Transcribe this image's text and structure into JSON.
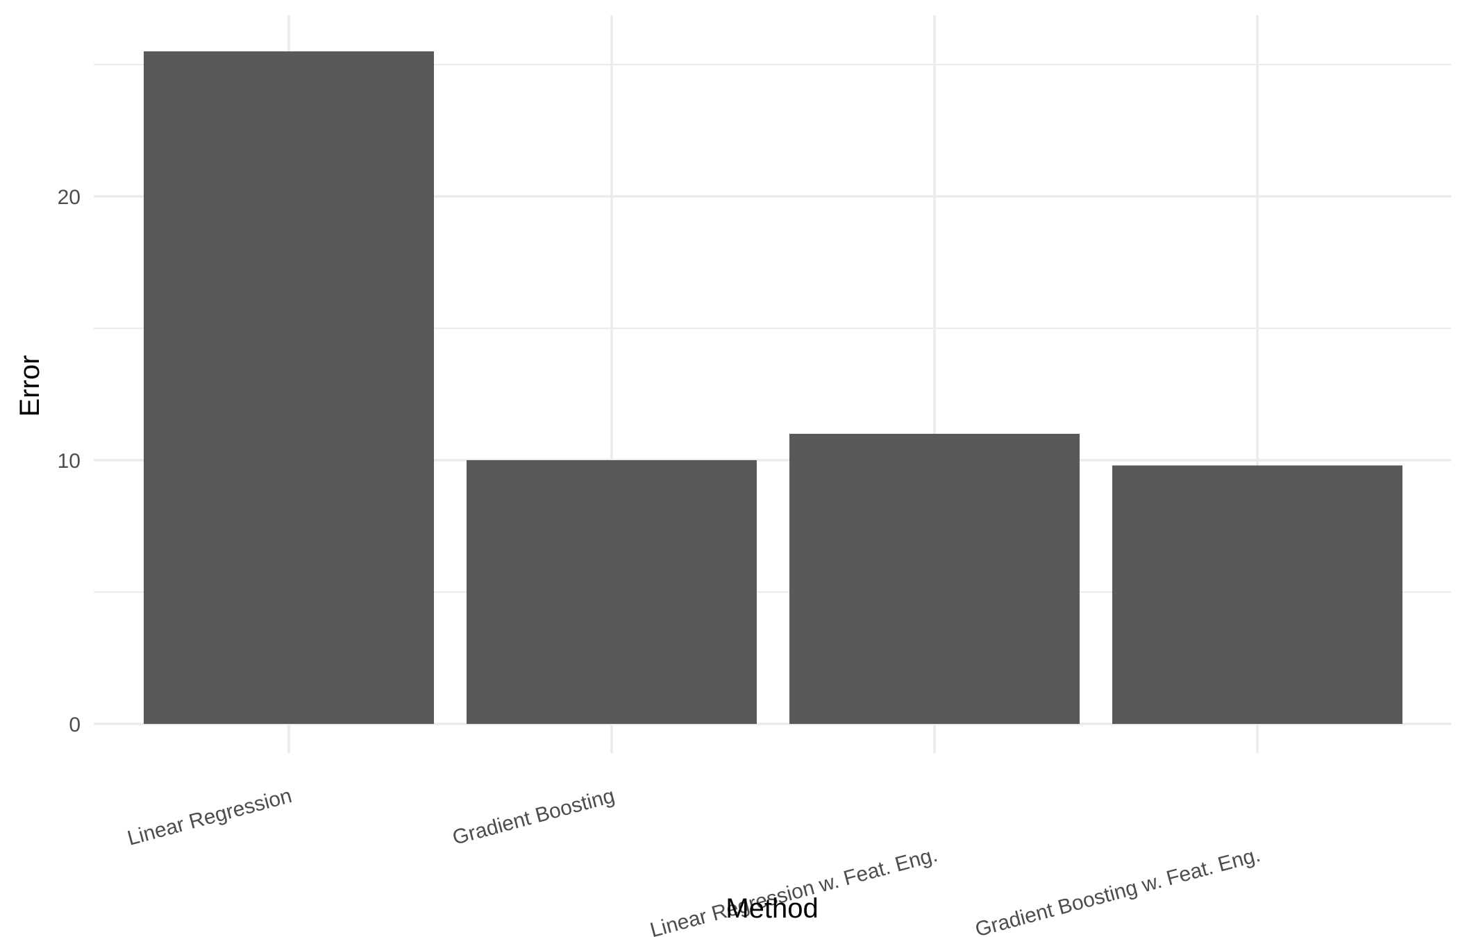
{
  "chart_data": {
    "type": "bar",
    "title": "",
    "xlabel": "Method",
    "ylabel": "Error",
    "categories": [
      "Linear Regression",
      "Gradient Boosting",
      "Linear Regression w. Feat. Eng.",
      "Gradient Boosting w. Feat. Eng."
    ],
    "values": [
      25.5,
      10.0,
      11.0,
      9.8
    ],
    "ylim": [
      0,
      27
    ],
    "yticks": [
      0,
      10,
      20
    ],
    "grid": true,
    "legend": "none",
    "bar_color": "#595959",
    "grid_color": "#ebebeb"
  }
}
